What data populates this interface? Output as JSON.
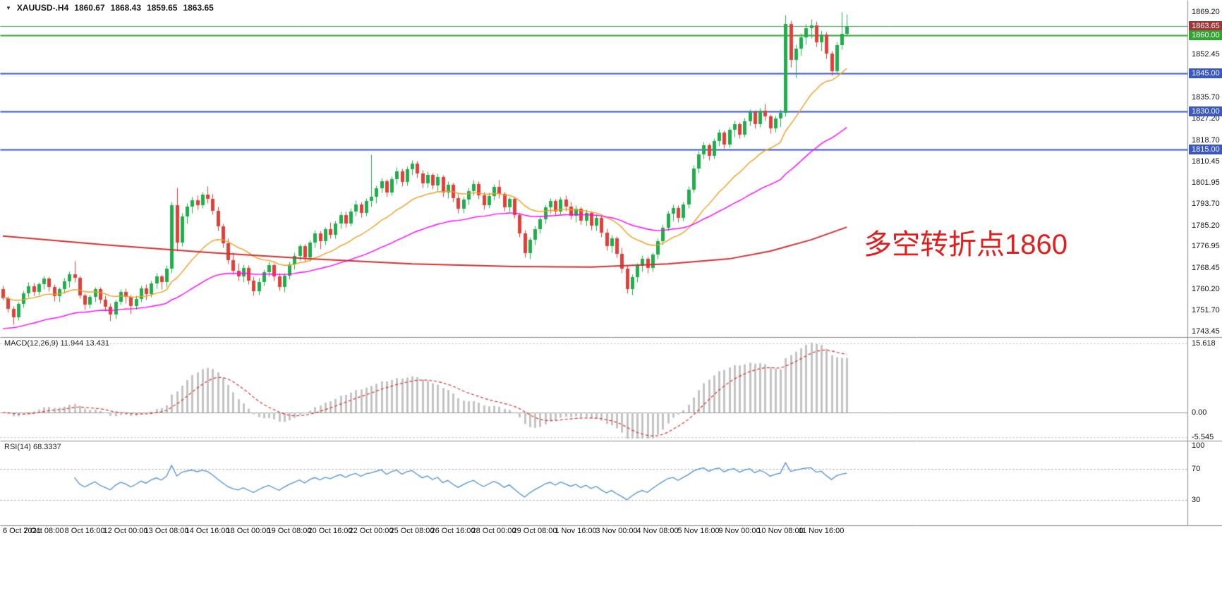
{
  "header": {
    "symbol": "XAUUSD-.H4",
    "open": "1860.67",
    "high": "1868.43",
    "low": "1859.65",
    "close": "1863.65"
  },
  "annotation": {
    "text": "多空转折点1860",
    "color": "#e01f1f"
  },
  "indicators": {
    "macd_label": "MACD(12,26,9) 11.944 13.431",
    "rsi_label": "RSI(14) 68.3337",
    "macd_axis": [
      "15.618",
      "0.00",
      "-5.545"
    ],
    "rsi_axis": [
      "100",
      "70",
      "30"
    ]
  },
  "price_axis": {
    "labels": [
      "1869.20",
      "1860.70",
      "1852.45",
      "1843.95",
      "1835.70",
      "1827.20",
      "1818.70",
      "1810.45",
      "1801.95",
      "1793.70",
      "1785.20",
      "1776.95",
      "1768.45",
      "1760.20",
      "1751.70",
      "1743.45"
    ],
    "badges": [
      {
        "value": "1863.65",
        "color": "#a23535"
      },
      {
        "value": "1860.00",
        "color": "#2fa52f"
      },
      {
        "value": "1845.00",
        "color": "#3a57c9"
      },
      {
        "value": "1830.00",
        "color": "#3a57c9"
      },
      {
        "value": "1815.00",
        "color": "#3a57c9"
      }
    ]
  },
  "time_axis": [
    "6 Oct 2021",
    "7 Oct 08:00",
    "8 Oct 16:00",
    "12 Oct 00:00",
    "13 Oct 08:00",
    "14 Oct 16:00",
    "18 Oct 00:00",
    "19 Oct 08:00",
    "20 Oct 16:00",
    "22 Oct 00:00",
    "25 Oct 08:00",
    "26 Oct 16:00",
    "28 Oct 00:00",
    "29 Oct 08:00",
    "1 Nov 16:00",
    "3 Nov 00:00",
    "4 Nov 08:00",
    "5 Nov 16:00",
    "9 Nov 00:00",
    "10 Nov 08:00",
    "11 Nov 16:00"
  ],
  "chart_data": {
    "type": "candlestick",
    "symbol": "XAUUSD",
    "timeframe": "H4",
    "title": "XAUUSD-.H4 1860.67 1868.43 1859.65 1863.65",
    "price_range": [
      1743.45,
      1869.2
    ],
    "bars_per_label": 8,
    "colors": {
      "up": "#1fae4b",
      "down": "#e0403a",
      "hist": "#c4c4c4",
      "signal": "#e03030",
      "rsi": "#4f93d6",
      "level_blue": "#3a57c9",
      "level_green": "#2fa52f"
    },
    "h_lines": [
      {
        "price": 1863.65,
        "color": "#3aa34d",
        "width": 1
      },
      {
        "price": 1860.0,
        "color": "#2fa52f",
        "width": 2
      },
      {
        "price": 1845.0,
        "color": "#3a57c9",
        "width": 2
      },
      {
        "price": 1830.0,
        "color": "#3a57c9",
        "width": 2
      },
      {
        "price": 1815.0,
        "color": "#3a57c9",
        "width": 2
      }
    ],
    "moving_averages": [
      {
        "name": "fast-ma",
        "period": 20,
        "seed": 1757,
        "color": "#f0a020"
      },
      {
        "name": "mid-ma",
        "period": 55,
        "seed": 1744,
        "color": "#ff00ff"
      },
      {
        "name": "slow-ma",
        "color": "#d03030",
        "points": [
          [
            0,
            1781
          ],
          [
            20,
            1777.5
          ],
          [
            40,
            1774.5
          ],
          [
            60,
            1772
          ],
          [
            80,
            1770
          ],
          [
            100,
            1769
          ],
          [
            115,
            1768.8
          ],
          [
            130,
            1770
          ],
          [
            142,
            1772
          ],
          [
            150,
            1775
          ],
          [
            158,
            1779.5
          ],
          [
            165,
            1784.5
          ]
        ]
      }
    ],
    "macd": {
      "fast": 12,
      "slow": 26,
      "signal": 9,
      "current": [
        11.944,
        13.431
      ],
      "range": [
        -5.545,
        15.618
      ]
    },
    "rsi": {
      "period": 14,
      "current": 68.3337,
      "levels": [
        30,
        70
      ]
    },
    "candles": [
      [
        1760.0,
        1761.5,
        1755.8,
        1756.5
      ],
      [
        1756.5,
        1757.2,
        1751.0,
        1752.3
      ],
      [
        1752.3,
        1753.5,
        1746.2,
        1749.0
      ],
      [
        1749.0,
        1755.0,
        1748.0,
        1754.2
      ],
      [
        1754.2,
        1759.5,
        1753.0,
        1758.3
      ],
      [
        1758.3,
        1762.8,
        1757.0,
        1761.2
      ],
      [
        1761.2,
        1762.5,
        1757.5,
        1759.0
      ],
      [
        1759.0,
        1763.0,
        1757.8,
        1762.1
      ],
      [
        1762.1,
        1765.5,
        1760.0,
        1764.3
      ],
      [
        1764.3,
        1765.0,
        1759.2,
        1760.8
      ],
      [
        1760.8,
        1762.0,
        1755.5,
        1757.2
      ],
      [
        1757.2,
        1761.0,
        1755.0,
        1760.0
      ],
      [
        1760.0,
        1764.5,
        1758.5,
        1763.2
      ],
      [
        1763.2,
        1767.0,
        1761.0,
        1766.0
      ],
      [
        1766.0,
        1771.2,
        1763.0,
        1764.5
      ],
      [
        1764.5,
        1765.5,
        1756.5,
        1757.5
      ],
      [
        1757.5,
        1758.5,
        1752.0,
        1754.0
      ],
      [
        1754.0,
        1758.0,
        1752.5,
        1757.0
      ],
      [
        1757.0,
        1761.0,
        1755.0,
        1760.2
      ],
      [
        1760.2,
        1761.0,
        1754.5,
        1756.0
      ],
      [
        1756.0,
        1757.5,
        1751.5,
        1753.2
      ],
      [
        1753.2,
        1754.5,
        1747.5,
        1750.0
      ],
      [
        1750.0,
        1756.0,
        1748.5,
        1755.1
      ],
      [
        1755.1,
        1760.0,
        1754.0,
        1759.0
      ],
      [
        1759.0,
        1760.5,
        1754.5,
        1757.0
      ],
      [
        1757.0,
        1758.0,
        1750.5,
        1753.3
      ],
      [
        1753.3,
        1757.5,
        1752.0,
        1756.2
      ],
      [
        1756.2,
        1761.5,
        1755.0,
        1760.4
      ],
      [
        1760.4,
        1762.0,
        1756.0,
        1758.1
      ],
      [
        1758.1,
        1763.5,
        1757.0,
        1762.3
      ],
      [
        1762.3,
        1766.5,
        1760.5,
        1765.0
      ],
      [
        1765.0,
        1766.0,
        1760.0,
        1762.8
      ],
      [
        1762.8,
        1769.5,
        1761.0,
        1768.2
      ],
      [
        1768.2,
        1794.5,
        1766.5,
        1793.0
      ],
      [
        1793.0,
        1800.2,
        1775.0,
        1778.5
      ],
      [
        1778.5,
        1790.0,
        1777.0,
        1788.6
      ],
      [
        1788.6,
        1794.0,
        1786.0,
        1792.5
      ],
      [
        1792.5,
        1796.5,
        1790.0,
        1795.2
      ],
      [
        1795.2,
        1797.0,
        1791.5,
        1793.0
      ],
      [
        1793.0,
        1798.5,
        1792.0,
        1797.3
      ],
      [
        1797.3,
        1800.5,
        1794.0,
        1795.5
      ],
      [
        1795.5,
        1797.5,
        1789.5,
        1791.0
      ],
      [
        1791.0,
        1792.5,
        1783.0,
        1784.8
      ],
      [
        1784.8,
        1786.0,
        1776.5,
        1778.2
      ],
      [
        1778.2,
        1780.0,
        1770.0,
        1771.5
      ],
      [
        1771.5,
        1774.5,
        1766.0,
        1767.3
      ],
      [
        1767.3,
        1770.5,
        1763.5,
        1765.0
      ],
      [
        1765.0,
        1769.8,
        1763.0,
        1768.4
      ],
      [
        1768.4,
        1769.5,
        1762.0,
        1763.5
      ],
      [
        1763.5,
        1765.0,
        1757.5,
        1759.2
      ],
      [
        1759.2,
        1764.5,
        1758.0,
        1763.0
      ],
      [
        1763.0,
        1768.0,
        1761.5,
        1766.8
      ],
      [
        1766.8,
        1771.0,
        1765.0,
        1769.5
      ],
      [
        1769.5,
        1770.5,
        1763.5,
        1765.2
      ],
      [
        1765.2,
        1766.5,
        1759.5,
        1761.0
      ],
      [
        1761.0,
        1766.5,
        1759.0,
        1765.5
      ],
      [
        1765.5,
        1771.0,
        1764.0,
        1769.8
      ],
      [
        1769.8,
        1774.5,
        1768.0,
        1773.2
      ],
      [
        1773.2,
        1778.0,
        1771.5,
        1776.9
      ],
      [
        1776.9,
        1778.0,
        1771.0,
        1772.5
      ],
      [
        1772.5,
        1779.5,
        1771.0,
        1778.3
      ],
      [
        1778.3,
        1783.5,
        1776.5,
        1782.0
      ],
      [
        1782.0,
        1783.0,
        1776.0,
        1779.0
      ],
      [
        1779.0,
        1784.5,
        1777.5,
        1783.6
      ],
      [
        1783.6,
        1786.5,
        1780.0,
        1781.5
      ],
      [
        1781.5,
        1787.0,
        1780.0,
        1785.8
      ],
      [
        1785.8,
        1790.5,
        1784.0,
        1789.3
      ],
      [
        1789.3,
        1790.5,
        1784.5,
        1786.0
      ],
      [
        1786.0,
        1792.0,
        1785.0,
        1790.7
      ],
      [
        1790.7,
        1795.0,
        1789.0,
        1793.5
      ],
      [
        1793.5,
        1794.5,
        1788.5,
        1790.2
      ],
      [
        1790.2,
        1796.0,
        1789.0,
        1794.8
      ],
      [
        1794.8,
        1813.2,
        1792.5,
        1796.5
      ],
      [
        1796.5,
        1801.0,
        1794.0,
        1799.8
      ],
      [
        1799.8,
        1804.0,
        1798.0,
        1802.7
      ],
      [
        1802.7,
        1803.5,
        1796.5,
        1798.2
      ],
      [
        1798.2,
        1804.5,
        1797.0,
        1803.4
      ],
      [
        1803.4,
        1808.0,
        1801.5,
        1806.5
      ],
      [
        1806.5,
        1807.5,
        1800.5,
        1802.3
      ],
      [
        1802.3,
        1808.5,
        1801.0,
        1807.2
      ],
      [
        1807.2,
        1810.8,
        1805.0,
        1809.4
      ],
      [
        1809.4,
        1810.5,
        1804.0,
        1805.6
      ],
      [
        1805.6,
        1807.0,
        1800.0,
        1801.8
      ],
      [
        1801.8,
        1806.5,
        1800.0,
        1805.0
      ],
      [
        1805.0,
        1806.0,
        1799.5,
        1800.9
      ],
      [
        1800.9,
        1805.5,
        1799.0,
        1804.3
      ],
      [
        1804.3,
        1805.0,
        1796.5,
        1798.0
      ],
      [
        1798.0,
        1802.5,
        1796.0,
        1801.2
      ],
      [
        1801.2,
        1802.0,
        1794.5,
        1796.0
      ],
      [
        1796.0,
        1797.5,
        1790.0,
        1791.7
      ],
      [
        1791.7,
        1796.5,
        1790.0,
        1795.3
      ],
      [
        1795.3,
        1800.0,
        1793.5,
        1798.8
      ],
      [
        1798.8,
        1803.0,
        1797.0,
        1801.5
      ],
      [
        1801.5,
        1802.5,
        1795.5,
        1797.0
      ],
      [
        1797.0,
        1798.5,
        1791.5,
        1793.2
      ],
      [
        1793.2,
        1798.0,
        1792.0,
        1796.8
      ],
      [
        1796.8,
        1801.5,
        1795.0,
        1800.3
      ],
      [
        1800.3,
        1803.0,
        1796.0,
        1797.5
      ],
      [
        1797.5,
        1798.5,
        1791.0,
        1792.4
      ],
      [
        1792.4,
        1796.5,
        1790.5,
        1795.6
      ],
      [
        1795.6,
        1796.5,
        1788.0,
        1789.2
      ],
      [
        1789.2,
        1790.0,
        1780.5,
        1782.0
      ],
      [
        1782.0,
        1783.5,
        1772.5,
        1774.3
      ],
      [
        1774.3,
        1780.5,
        1772.0,
        1779.4
      ],
      [
        1779.4,
        1785.0,
        1777.5,
        1783.8
      ],
      [
        1783.8,
        1789.0,
        1782.0,
        1787.6
      ],
      [
        1787.6,
        1793.5,
        1786.0,
        1792.2
      ],
      [
        1792.2,
        1796.0,
        1790.0,
        1794.7
      ],
      [
        1794.7,
        1795.5,
        1789.0,
        1790.5
      ],
      [
        1790.5,
        1796.5,
        1789.5,
        1795.3
      ],
      [
        1795.3,
        1797.0,
        1791.0,
        1792.6
      ],
      [
        1792.6,
        1794.5,
        1787.5,
        1789.0
      ],
      [
        1789.0,
        1793.0,
        1786.5,
        1791.8
      ],
      [
        1791.8,
        1792.5,
        1785.5,
        1787.0
      ],
      [
        1787.0,
        1791.5,
        1785.0,
        1790.2
      ],
      [
        1790.2,
        1791.0,
        1783.5,
        1785.1
      ],
      [
        1785.1,
        1789.5,
        1783.0,
        1788.0
      ],
      [
        1788.0,
        1789.0,
        1780.5,
        1782.3
      ],
      [
        1782.3,
        1784.0,
        1775.5,
        1777.0
      ],
      [
        1777.0,
        1781.5,
        1774.5,
        1780.0
      ],
      [
        1780.0,
        1781.0,
        1772.5,
        1774.0
      ],
      [
        1774.0,
        1776.5,
        1766.5,
        1768.2
      ],
      [
        1768.2,
        1769.5,
        1758.5,
        1760.1
      ],
      [
        1760.1,
        1766.0,
        1757.8,
        1764.8
      ],
      [
        1764.8,
        1770.5,
        1763.0,
        1769.3
      ],
      [
        1769.3,
        1773.5,
        1767.0,
        1772.0
      ],
      [
        1772.0,
        1773.0,
        1766.5,
        1768.4
      ],
      [
        1768.4,
        1774.5,
        1767.0,
        1773.6
      ],
      [
        1773.6,
        1780.0,
        1772.0,
        1778.9
      ],
      [
        1778.9,
        1785.5,
        1777.5,
        1784.2
      ],
      [
        1784.2,
        1791.0,
        1783.0,
        1789.8
      ],
      [
        1789.8,
        1793.5,
        1787.0,
        1792.1
      ],
      [
        1792.1,
        1793.0,
        1786.5,
        1788.0
      ],
      [
        1788.0,
        1794.5,
        1787.0,
        1793.4
      ],
      [
        1793.4,
        1800.5,
        1792.0,
        1799.2
      ],
      [
        1799.2,
        1809.0,
        1798.0,
        1807.6
      ],
      [
        1807.6,
        1814.5,
        1806.0,
        1813.2
      ],
      [
        1813.2,
        1818.0,
        1811.5,
        1816.8
      ],
      [
        1816.8,
        1817.5,
        1811.0,
        1812.5
      ],
      [
        1812.5,
        1819.5,
        1811.5,
        1818.3
      ],
      [
        1818.3,
        1823.0,
        1816.5,
        1821.7
      ],
      [
        1821.7,
        1822.5,
        1815.5,
        1817.0
      ],
      [
        1817.0,
        1824.0,
        1816.0,
        1822.9
      ],
      [
        1822.9,
        1826.5,
        1820.0,
        1825.1
      ],
      [
        1825.1,
        1826.0,
        1819.5,
        1821.0
      ],
      [
        1821.0,
        1827.5,
        1820.0,
        1826.3
      ],
      [
        1826.3,
        1831.0,
        1824.5,
        1829.7
      ],
      [
        1829.7,
        1830.5,
        1823.5,
        1825.0
      ],
      [
        1825.0,
        1831.5,
        1824.0,
        1830.4
      ],
      [
        1830.4,
        1833.0,
        1826.5,
        1828.1
      ],
      [
        1828.1,
        1829.0,
        1821.5,
        1823.3
      ],
      [
        1823.3,
        1828.5,
        1822.0,
        1827.4
      ],
      [
        1827.4,
        1831.0,
        1824.0,
        1829.6
      ],
      [
        1829.6,
        1868.2,
        1828.0,
        1864.5
      ],
      [
        1864.5,
        1866.0,
        1847.5,
        1850.2
      ],
      [
        1850.2,
        1856.5,
        1843.5,
        1854.8
      ],
      [
        1854.8,
        1861.0,
        1852.0,
        1859.3
      ],
      [
        1859.3,
        1864.5,
        1856.5,
        1862.7
      ],
      [
        1862.7,
        1866.5,
        1859.0,
        1864.0
      ],
      [
        1864.0,
        1865.5,
        1855.5,
        1857.2
      ],
      [
        1857.2,
        1862.0,
        1854.0,
        1860.4
      ],
      [
        1860.4,
        1861.5,
        1851.0,
        1852.8
      ],
      [
        1852.8,
        1854.0,
        1844.2,
        1846.0
      ],
      [
        1846.0,
        1857.5,
        1845.0,
        1856.1
      ],
      [
        1856.1,
        1869.2,
        1854.5,
        1860.7
      ],
      [
        1860.7,
        1868.4,
        1859.7,
        1863.7
      ]
    ]
  }
}
